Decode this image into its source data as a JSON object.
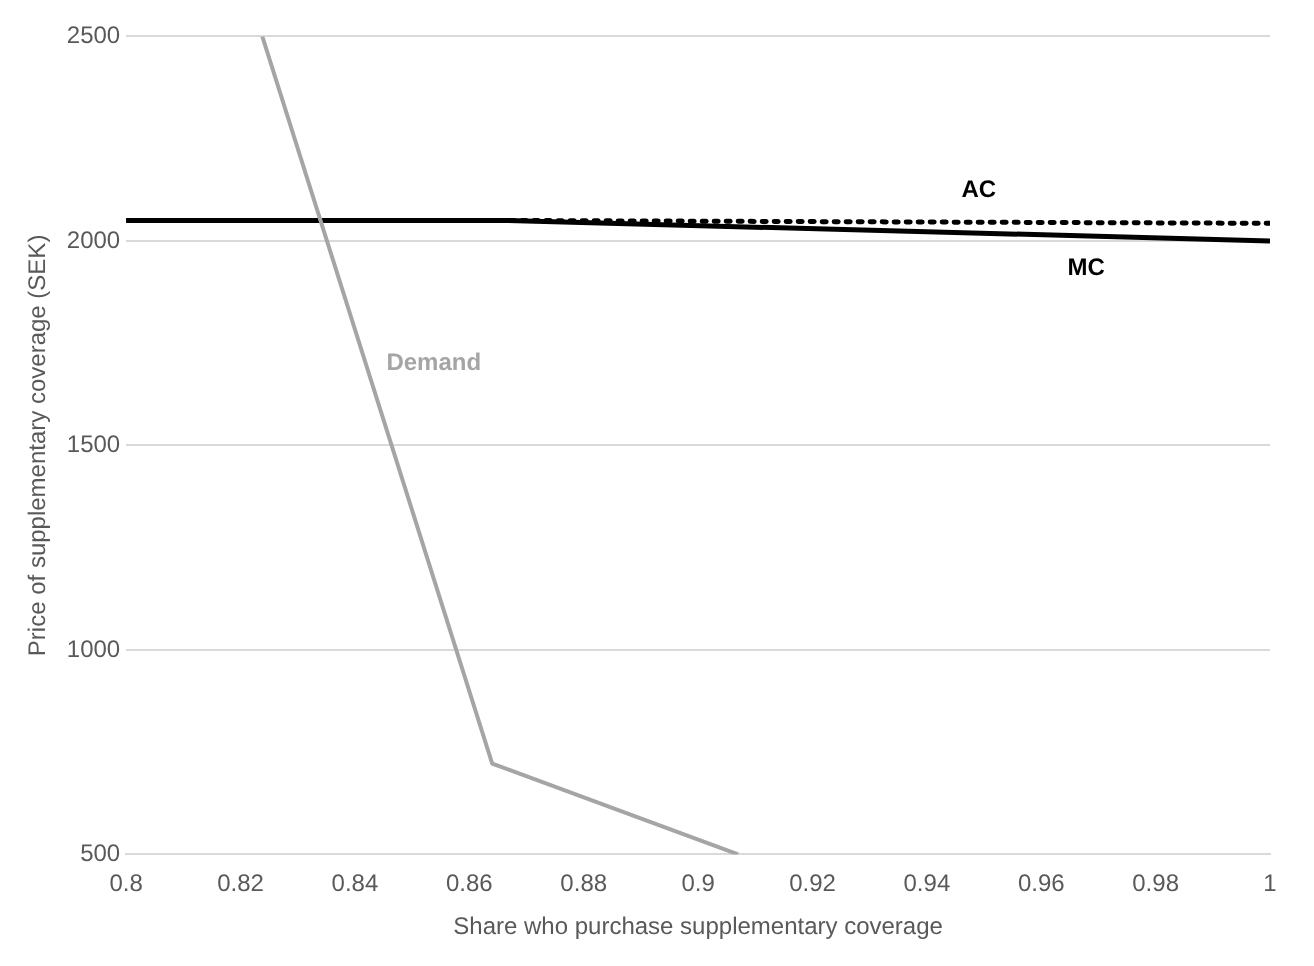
{
  "chart_data": {
    "type": "line",
    "xlabel": "Share who purchase supplementary coverage",
    "ylabel": "Price of supplementary coverage (SEK)",
    "xlim": [
      0.8,
      1
    ],
    "xticks": [
      0.8,
      0.82,
      0.84,
      0.86,
      0.88,
      0.9,
      0.92,
      0.94,
      0.96,
      0.98,
      1
    ],
    "ylim": [
      500,
      2500
    ],
    "yticks": [
      500,
      1000,
      1500,
      2000,
      2500
    ],
    "grid": "y",
    "legend": false,
    "marker": "none",
    "series": [
      {
        "name": "Demand",
        "color": "#a5a5a5",
        "x": [
          0.8238,
          0.864,
          0.907
        ],
        "values": [
          2500,
          722,
          500
        ]
      },
      {
        "name": "AC",
        "color": "#000000",
        "line_style": "dotted",
        "x": [
          0.8,
          0.866,
          1
        ],
        "values": [
          2050,
          2050,
          2043
        ]
      },
      {
        "name": "MC",
        "color": "#000000",
        "line_style": "solid",
        "x": [
          0.8,
          0.866,
          1
        ],
        "values": [
          2050,
          2050,
          2000
        ]
      }
    ]
  }
}
